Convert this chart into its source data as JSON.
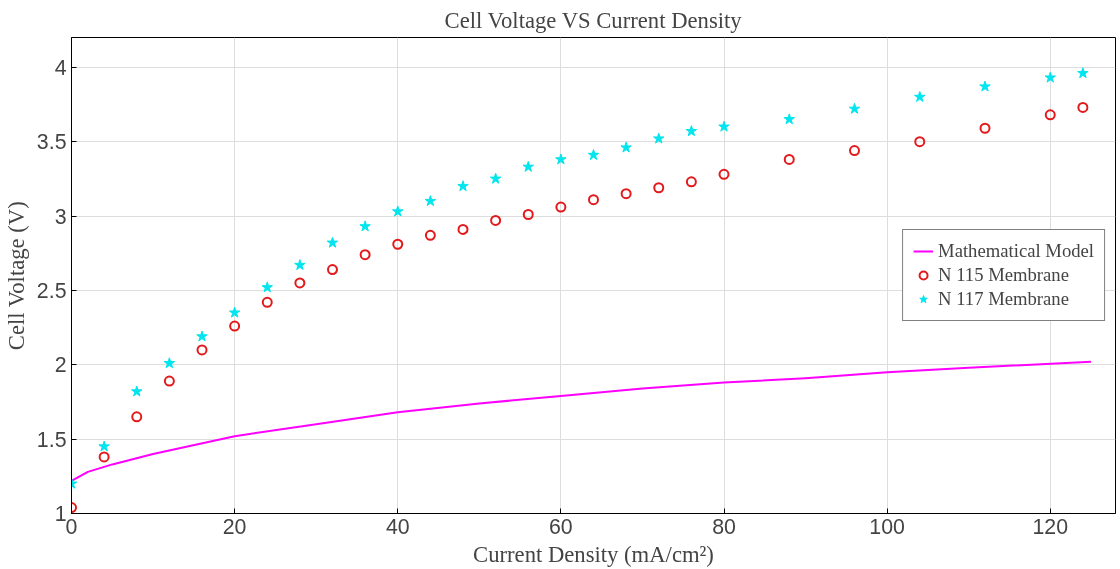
{
  "chart_data": {
    "type": "scatter",
    "title": "Cell Voltage VS Current Density",
    "xlabel": "Current Density (mA/cm²)",
    "ylabel": "Cell Voltage (V)",
    "xlim": [
      0,
      128
    ],
    "ylim": [
      1,
      4.2
    ],
    "xticks": [
      0,
      20,
      40,
      60,
      80,
      100,
      120
    ],
    "yticks": [
      1,
      1.5,
      2,
      2.5,
      3,
      3.5,
      4
    ],
    "grid": true,
    "legend": "right",
    "series": [
      {
        "name": "Mathematical Model",
        "type": "line",
        "color": "#ff00ff",
        "marker": "none",
        "line_style": "solid",
        "x": [
          0,
          2,
          5,
          10,
          20,
          30,
          40,
          50,
          60,
          70,
          80,
          90,
          100,
          110,
          125
        ],
        "values": [
          1.22,
          1.28,
          1.33,
          1.4,
          1.52,
          1.6,
          1.68,
          1.74,
          1.79,
          1.84,
          1.88,
          1.91,
          1.95,
          1.98,
          2.02
        ]
      },
      {
        "name": "N 115 Membrane",
        "color": "#e31a1c",
        "marker": "circle",
        "x": [
          0,
          4,
          8,
          12,
          16,
          20,
          24,
          28,
          32,
          36,
          40,
          44,
          48,
          52,
          56,
          60,
          64,
          68,
          72,
          76,
          80,
          88,
          96,
          104,
          112,
          120,
          124
        ],
        "values": [
          1.04,
          1.38,
          1.65,
          1.89,
          2.1,
          2.26,
          2.42,
          2.55,
          2.64,
          2.74,
          2.81,
          2.87,
          2.91,
          2.97,
          3.01,
          3.06,
          3.11,
          3.15,
          3.19,
          3.23,
          3.28,
          3.38,
          3.44,
          3.5,
          3.59,
          3.68,
          3.73
        ]
      },
      {
        "name": "N 117 Membrane",
        "color": "#00e5ee",
        "marker": "star",
        "x": [
          0,
          4,
          8,
          12,
          16,
          20,
          24,
          28,
          32,
          36,
          40,
          44,
          48,
          52,
          56,
          60,
          64,
          68,
          72,
          76,
          80,
          88,
          96,
          104,
          112,
          120,
          124
        ],
        "values": [
          1.2,
          1.45,
          1.82,
          2.01,
          2.19,
          2.35,
          2.52,
          2.67,
          2.82,
          2.93,
          3.03,
          3.1,
          3.2,
          3.25,
          3.33,
          3.38,
          3.41,
          3.46,
          3.52,
          3.57,
          3.6,
          3.65,
          3.72,
          3.8,
          3.87,
          3.93,
          3.96
        ]
      }
    ]
  }
}
